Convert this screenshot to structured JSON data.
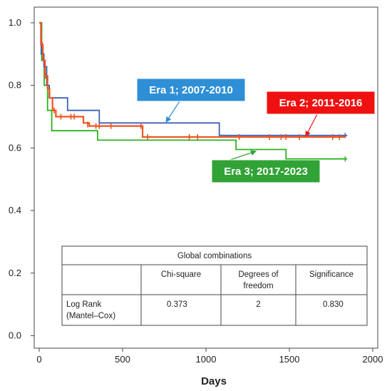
{
  "chart_data": {
    "type": "line",
    "subtype": "kaplan-meier-step",
    "xlabel": "Days",
    "ylabel": "",
    "xlim": [
      -30,
      2030
    ],
    "ylim": [
      -0.04,
      1.05
    ],
    "x_ticks": [
      0,
      500,
      1000,
      1500,
      2000
    ],
    "y_ticks": [
      0.0,
      0.2,
      0.4,
      0.6,
      0.8,
      1.0
    ],
    "y_tick_labels": [
      "0.0",
      "0.2",
      "0.4",
      "0.6",
      "0.8",
      "1.0"
    ],
    "grid": false,
    "series": [
      {
        "name": "Era 1; 2007-2010",
        "color": "#3d62b5",
        "label_bg": "#2e8fd6",
        "steps": [
          [
            0,
            1.0
          ],
          [
            12,
            0.9
          ],
          [
            28,
            0.86
          ],
          [
            45,
            0.8
          ],
          [
            60,
            0.76
          ],
          [
            170,
            0.72
          ],
          [
            360,
            0.68
          ],
          [
            1080,
            0.64
          ],
          [
            1840,
            0.64
          ]
        ],
        "censored": [
          [
            1835,
            0.64
          ]
        ]
      },
      {
        "name": "Era 2; 2011-2016",
        "color": "#f0531f",
        "label_bg": "#f01010",
        "steps": [
          [
            0,
            1.0
          ],
          [
            10,
            0.93
          ],
          [
            22,
            0.88
          ],
          [
            35,
            0.83
          ],
          [
            50,
            0.79
          ],
          [
            62,
            0.76
          ],
          [
            80,
            0.72
          ],
          [
            100,
            0.7
          ],
          [
            265,
            0.68
          ],
          [
            300,
            0.67
          ],
          [
            620,
            0.635
          ],
          [
            1840,
            0.635
          ]
        ],
        "censored": [
          [
            18,
            0.93
          ],
          [
            38,
            0.83
          ],
          [
            90,
            0.72
          ],
          [
            130,
            0.7
          ],
          [
            190,
            0.7
          ],
          [
            210,
            0.7
          ],
          [
            290,
            0.675
          ],
          [
            340,
            0.67
          ],
          [
            360,
            0.67
          ],
          [
            430,
            0.67
          ],
          [
            610,
            0.67
          ],
          [
            650,
            0.635
          ],
          [
            900,
            0.635
          ],
          [
            950,
            0.635
          ],
          [
            1200,
            0.635
          ],
          [
            1380,
            0.635
          ],
          [
            1450,
            0.635
          ],
          [
            1480,
            0.635
          ],
          [
            1560,
            0.635
          ],
          [
            1760,
            0.635
          ],
          [
            1800,
            0.635
          ]
        ]
      },
      {
        "name": "Era 3; 2017-2023",
        "color": "#2bb21e",
        "label_bg": "#31a336",
        "steps": [
          [
            0,
            1.0
          ],
          [
            15,
            0.88
          ],
          [
            30,
            0.8
          ],
          [
            50,
            0.72
          ],
          [
            75,
            0.655
          ],
          [
            350,
            0.625
          ],
          [
            1180,
            0.595
          ],
          [
            1480,
            0.565
          ],
          [
            1840,
            0.565
          ]
        ],
        "censored": [
          [
            1835,
            0.565
          ]
        ]
      }
    ],
    "annotations": [
      {
        "text": "Era 1; 2007-2010",
        "series": 0
      },
      {
        "text": "Era 2; 2011-2016",
        "series": 1
      },
      {
        "text": "Era 3; 2017-2023",
        "series": 2
      }
    ],
    "table": {
      "title": "Global combinations",
      "columns": [
        "Chi-square",
        "Degrees of freedom",
        "Significance"
      ],
      "row_label": "Log Rank (Mantel–Cox)",
      "values": [
        "0.373",
        "2",
        "0.830"
      ]
    }
  }
}
